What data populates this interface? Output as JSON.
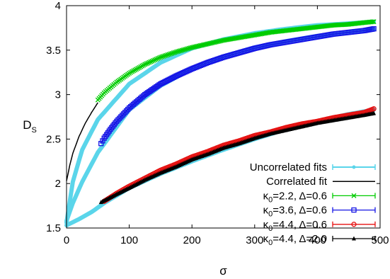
{
  "chart_data": {
    "type": "scatter",
    "title": "",
    "xlabel": "σ",
    "ylabel": "D_S",
    "xlim": [
      0,
      500
    ],
    "ylim": [
      1.5,
      4.0
    ],
    "x_ticks": [
      "0",
      "100",
      "200",
      "300",
      "400",
      "500"
    ],
    "y_ticks": [
      "1.5",
      "2",
      "2.5",
      "3",
      "3.5",
      "4"
    ],
    "grid": false,
    "legend_position": "bottom-right",
    "series": [
      {
        "name": "Uncorrelated fits",
        "kind": "fit-curves",
        "color": "#5ad5ea",
        "curves": [
          {
            "x": [
              0,
              10,
              25,
              50,
              100,
              150,
              200,
              250,
              300,
              350,
              400,
              450,
              490
            ],
            "y": [
              1.56,
              2.02,
              2.38,
              2.72,
              3.12,
              3.36,
              3.52,
              3.62,
              3.69,
              3.74,
              3.78,
              3.8,
              3.82
            ]
          },
          {
            "x": [
              0,
              10,
              25,
              50,
              100,
              150,
              200,
              250,
              300,
              350,
              400,
              450,
              490
            ],
            "y": [
              1.58,
              1.78,
              2.02,
              2.35,
              2.83,
              3.1,
              3.29,
              3.43,
              3.53,
              3.6,
              3.66,
              3.7,
              3.73
            ]
          },
          {
            "x": [
              0,
              20,
              40,
              60,
              100,
              150,
              200,
              250,
              300,
              350,
              400,
              450,
              490
            ],
            "y": [
              1.53,
              1.6,
              1.68,
              1.78,
              1.95,
              2.11,
              2.25,
              2.38,
              2.5,
              2.61,
              2.7,
              2.78,
              2.83
            ]
          }
        ]
      },
      {
        "name": "Correlated fit",
        "kind": "fit-curve",
        "color": "#000000",
        "x": [
          0,
          5,
          10,
          20,
          30,
          40,
          50
        ],
        "y": [
          2.03,
          2.2,
          2.34,
          2.53,
          2.68,
          2.8,
          2.91
        ]
      },
      {
        "name": "κ0=2.2, Δ=0.6",
        "marker": "x",
        "color": "#00cc00",
        "x": [
          50,
          60,
          80,
          100,
          125,
          150,
          175,
          200,
          225,
          250,
          275,
          300,
          325,
          350,
          375,
          400,
          425,
          450,
          475,
          490
        ],
        "y": [
          2.94,
          3.02,
          3.14,
          3.24,
          3.34,
          3.42,
          3.48,
          3.53,
          3.57,
          3.61,
          3.64,
          3.67,
          3.7,
          3.72,
          3.74,
          3.76,
          3.78,
          3.79,
          3.81,
          3.82
        ]
      },
      {
        "name": "κ0=3.6, Δ=0.6",
        "marker": "square",
        "color": "#1515e6",
        "x": [
          55,
          60,
          70,
          80,
          100,
          125,
          150,
          175,
          200,
          225,
          250,
          275,
          300,
          325,
          350,
          375,
          400,
          425,
          450,
          475,
          490
        ],
        "y": [
          2.45,
          2.51,
          2.61,
          2.7,
          2.85,
          3.0,
          3.12,
          3.21,
          3.29,
          3.36,
          3.42,
          3.47,
          3.52,
          3.56,
          3.59,
          3.62,
          3.65,
          3.68,
          3.7,
          3.72,
          3.74
        ]
      },
      {
        "name": "κ0=4.4, Δ=0.6",
        "marker": "circle",
        "color": "#e61010",
        "x": [
          60,
          80,
          100,
          125,
          150,
          175,
          200,
          225,
          250,
          275,
          300,
          325,
          350,
          375,
          400,
          425,
          450,
          475,
          490
        ],
        "y": [
          1.8,
          1.89,
          1.97,
          2.06,
          2.15,
          2.22,
          2.3,
          2.36,
          2.43,
          2.48,
          2.54,
          2.58,
          2.63,
          2.67,
          2.7,
          2.74,
          2.77,
          2.8,
          2.84
        ]
      },
      {
        "name": "κ0=4.4, Δ=2.0",
        "marker": "triangle",
        "color": "#000000",
        "x": [
          55,
          80,
          100,
          125,
          150,
          175,
          200,
          225,
          250,
          275,
          300,
          325,
          350,
          375,
          400,
          425,
          450,
          475,
          490
        ],
        "y": [
          1.79,
          1.88,
          1.95,
          2.04,
          2.12,
          2.19,
          2.27,
          2.33,
          2.4,
          2.45,
          2.51,
          2.56,
          2.6,
          2.64,
          2.68,
          2.71,
          2.74,
          2.77,
          2.79
        ]
      }
    ],
    "legend": [
      {
        "prefix": "Uncorrelated fits",
        "sub": "",
        "suffix": ""
      },
      {
        "prefix": "Correlated fit",
        "sub": "",
        "suffix": ""
      },
      {
        "prefix": "κ",
        "sub": "0",
        "suffix": "=2.2, Δ=0.6"
      },
      {
        "prefix": "κ",
        "sub": "0",
        "suffix": "=3.6, Δ=0.6"
      },
      {
        "prefix": "κ",
        "sub": "0",
        "suffix": "=4.4, Δ=0.6"
      },
      {
        "prefix": "κ",
        "sub": "0",
        "suffix": "=4.4, Δ=2.0"
      }
    ],
    "ylabel_parts": {
      "main": "D",
      "sub": "S"
    }
  }
}
